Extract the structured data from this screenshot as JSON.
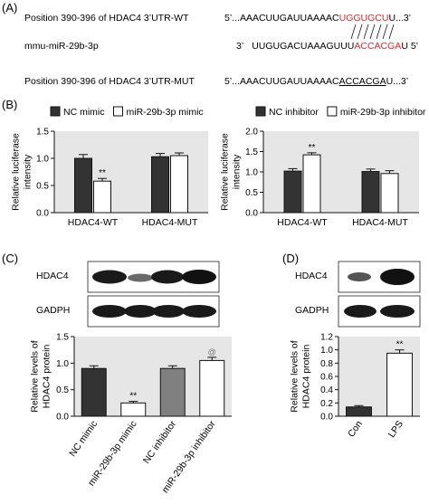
{
  "panels": {
    "A": {
      "label": "(A)",
      "rows": [
        {
          "name": "Position 390-396 of HDAC4 3’UTR-WT",
          "prefix": "5’...",
          "plain": "AAACUUGAUUAAAAC",
          "highlight": "UGGUGCU",
          "suffix": "U...3’"
        },
        {
          "name": "mmu-miR-29b-3p",
          "prefix": "3’",
          "plain": "UUGUGACUAAAGUUU",
          "highlight": "ACCACGA",
          "suffix": "U  5’"
        },
        {
          "name": "Position 390-396 of HDAC4 3’UTR-MUT",
          "prefix": "5’...",
          "plain": "AAACUUGAUUAAAAC",
          "underlined": "ACCACGA",
          "suffix": "U...3’"
        }
      ],
      "highlight_color": "#e8252a"
    },
    "B": {
      "label": "(B)"
    },
    "C": {
      "label": "(C)",
      "blots": [
        "HDAC4",
        "GADPH"
      ]
    },
    "D": {
      "label": "(D)",
      "blots": [
        "HDAC4",
        "GADPH"
      ]
    }
  },
  "colors": {
    "dark": "#333333",
    "white": "#ffffff",
    "gray": "#808080",
    "background": "#e6e6e6",
    "sig": "#111111"
  },
  "chart_data": [
    {
      "id": "B-left",
      "type": "bar",
      "ylabel": "Relative luciferase intensity",
      "ylim": [
        0,
        1.5
      ],
      "yticks": [
        0.0,
        0.5,
        1.0,
        1.5
      ],
      "categories": [
        "HDAC4-WT",
        "HDAC4-MUT"
      ],
      "series": [
        {
          "name": "NC mimic",
          "values": [
            1.0,
            1.03
          ],
          "errors": [
            0.07,
            0.06
          ],
          "color": "dark"
        },
        {
          "name": "miR-29b-3p mimic",
          "values": [
            0.58,
            1.05
          ],
          "errors": [
            0.05,
            0.05
          ],
          "color": "white"
        }
      ],
      "annotations": [
        {
          "series": 1,
          "category": 0,
          "text": "**"
        }
      ],
      "legend": "top"
    },
    {
      "id": "B-right",
      "type": "bar",
      "ylabel": "Relative luciferase intensity",
      "ylim": [
        0,
        2.0
      ],
      "yticks": [
        0.0,
        0.5,
        1.0,
        1.5,
        2.0
      ],
      "categories": [
        "HDAC4-WT",
        "HDAC4-MUT"
      ],
      "series": [
        {
          "name": "NC inhibitor",
          "values": [
            1.02,
            1.01
          ],
          "errors": [
            0.06,
            0.06
          ],
          "color": "dark"
        },
        {
          "name": "miR-29b-3p inhibitor",
          "values": [
            1.42,
            0.96
          ],
          "errors": [
            0.05,
            0.07
          ],
          "color": "white"
        }
      ],
      "annotations": [
        {
          "series": 1,
          "category": 0,
          "text": "**"
        }
      ],
      "legend": "top"
    },
    {
      "id": "C",
      "type": "bar",
      "ylabel": "Relative levels of HDAC4 protein",
      "ylim": [
        0,
        1.5
      ],
      "yticks": [
        0.0,
        0.5,
        1.0,
        1.5
      ],
      "categories": [
        "NC mimic",
        "miR-29b-3p mimic",
        "NC inhibitor",
        "miR-29b-3p inhibitor"
      ],
      "values": [
        0.9,
        0.25,
        0.9,
        1.05
      ],
      "errors": [
        0.05,
        0.03,
        0.05,
        0.06
      ],
      "colors": [
        "dark",
        "white",
        "gray",
        "white"
      ],
      "annotations": [
        {
          "category": 1,
          "text": "**"
        },
        {
          "category": 3,
          "text": "@"
        }
      ]
    },
    {
      "id": "D",
      "type": "bar",
      "ylabel": "Relative levels of HDAC4 protein",
      "ylim": [
        0,
        1.2
      ],
      "yticks": [
        0.0,
        0.2,
        0.4,
        0.6,
        0.8,
        1.0,
        1.2
      ],
      "categories": [
        "Con",
        "LPS"
      ],
      "values": [
        0.14,
        0.95
      ],
      "errors": [
        0.02,
        0.05
      ],
      "colors": [
        "dark",
        "white"
      ],
      "annotations": [
        {
          "category": 1,
          "text": "**"
        }
      ]
    }
  ]
}
